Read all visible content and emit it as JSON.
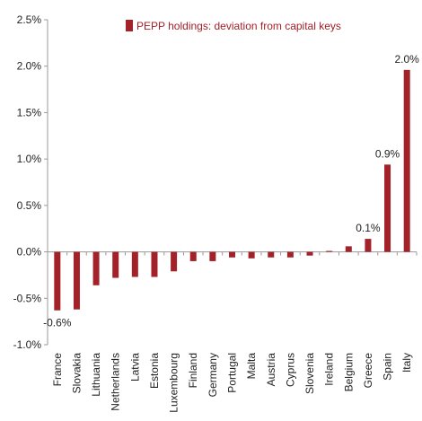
{
  "colors": {
    "bar": "#a32128",
    "axis": "#9a9a9a",
    "text": "#222222"
  },
  "legend": {
    "label": "PEPP holdings: deviation from capital keys",
    "position": "top-right"
  },
  "chart_data": {
    "type": "bar",
    "title": "",
    "xlabel": "",
    "ylabel": "",
    "ylim": [
      -1.0,
      2.5
    ],
    "grid": false,
    "yticks": [
      -1.0,
      -0.5,
      0.0,
      0.5,
      1.0,
      1.5,
      2.0,
      2.5
    ],
    "ytick_labels": [
      "-1.0%",
      "-0.5%",
      "0.0%",
      "0.5%",
      "1.0%",
      "1.5%",
      "2.0%",
      "2.5%"
    ],
    "categories": [
      "France",
      "Slovakia",
      "Lithuania",
      "Netherlands",
      "Latvia",
      "Estonia",
      "Luxembourg",
      "Finland",
      "Germany",
      "Portugal",
      "Malta",
      "Austria",
      "Cyprus",
      "Slovenia",
      "Ireland",
      "Belgium",
      "Greece",
      "Spain",
      "Italy"
    ],
    "series": [
      {
        "name": "PEPP holdings: deviation from capital keys",
        "values": [
          -0.63,
          -0.62,
          -0.36,
          -0.28,
          -0.27,
          -0.27,
          -0.21,
          -0.1,
          -0.1,
          -0.06,
          -0.07,
          -0.06,
          -0.06,
          -0.04,
          0.01,
          0.06,
          0.14,
          0.94,
          1.96
        ]
      }
    ],
    "data_labels": [
      {
        "category": "France",
        "text": "-0.6%"
      },
      {
        "category": "Greece",
        "text": "0.1%"
      },
      {
        "category": "Spain",
        "text": "0.9%"
      },
      {
        "category": "Italy",
        "text": "2.0%"
      }
    ]
  }
}
